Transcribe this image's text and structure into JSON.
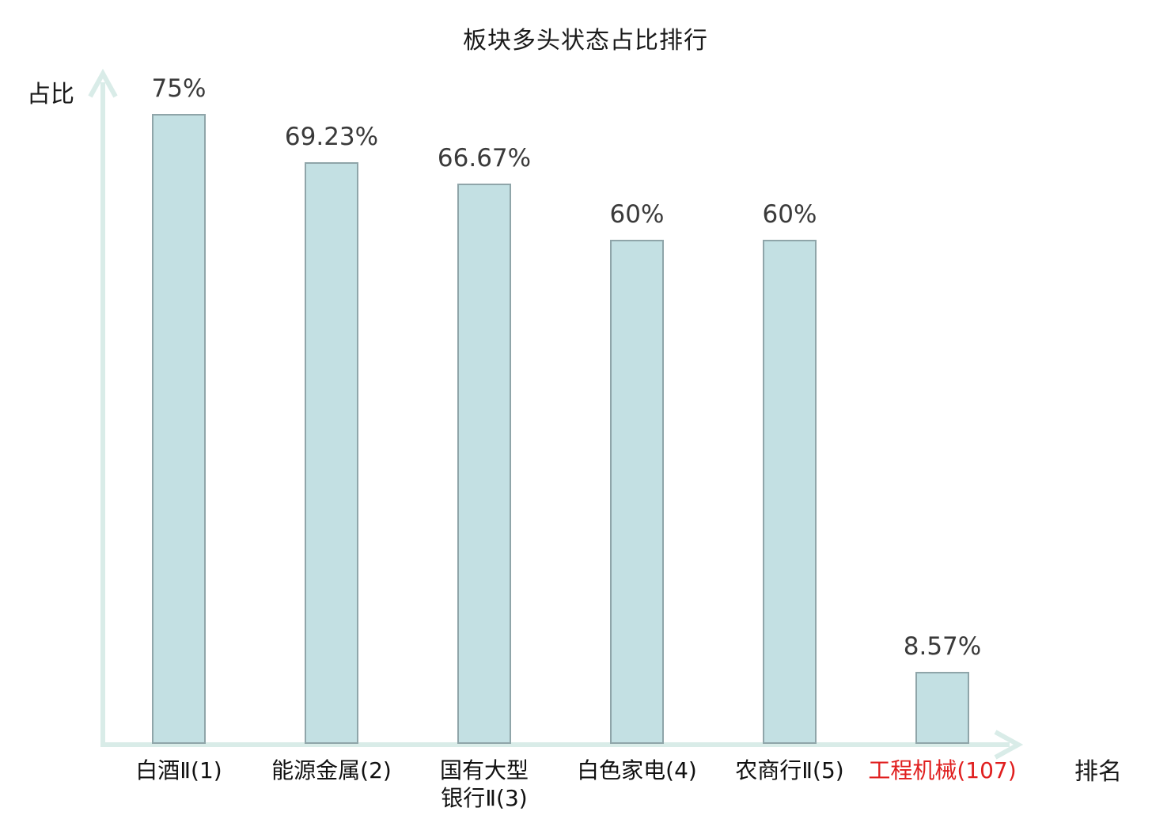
{
  "chart_data": {
    "type": "bar",
    "title": "板块多头状态占比排行",
    "xlabel": "排名",
    "ylabel": "占比",
    "categories": [
      "白酒Ⅱ(1)",
      "能源金属(2)",
      "国有大型银行Ⅱ(3)",
      "白色家电(4)",
      "农商行Ⅱ(5)",
      "工程机械(107)"
    ],
    "categories_display": [
      "白酒Ⅱ(1)",
      "能源金属(2)",
      "国有大型\n银行Ⅱ(3)",
      "白色家电(4)",
      "农商行Ⅱ(5)",
      "工程机械(107)"
    ],
    "values": [
      75,
      69.23,
      66.67,
      60,
      60,
      8.57
    ],
    "value_labels": [
      "75%",
      "69.23%",
      "66.67%",
      "60%",
      "60%",
      "8.57%"
    ],
    "highlight_index": 5,
    "ylim": [
      0,
      80
    ],
    "grid": false,
    "legend": false
  },
  "colors": {
    "bar_fill": "#c3e0e3",
    "bar_border": "#8fa5a9",
    "axis": "#d9ece8",
    "value_text": "#3a3a3a",
    "category_text": "#111111",
    "highlight_text": "#e01f1f",
    "title_text": "#1a1a1a"
  }
}
